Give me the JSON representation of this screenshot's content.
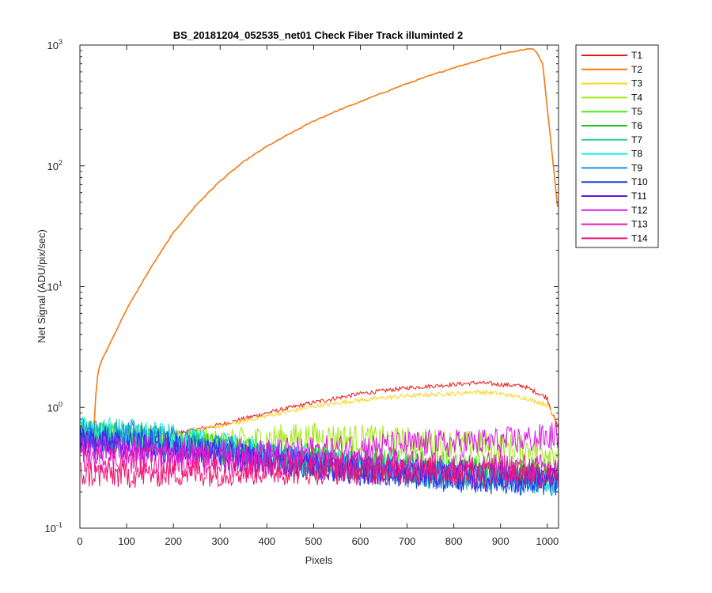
{
  "chart_data": {
    "type": "line",
    "title": "BS_20181204_052535_net01   Check Fiber     Track illuminted 2",
    "xlabel": "Pixels",
    "ylabel": "Net Signal (ADU/pix/sec)",
    "xlim": [
      0,
      1024
    ],
    "ylim": [
      0.1,
      1000
    ],
    "yscale": "log",
    "x_ticks": [
      "0",
      "100",
      "200",
      "300",
      "400",
      "500",
      "600",
      "700",
      "800",
      "900",
      "1000"
    ],
    "y_ticks": [
      {
        "value": 0.1,
        "base": "10",
        "exp": "-1"
      },
      {
        "value": 1,
        "base": "10",
        "exp": "0"
      },
      {
        "value": 10,
        "base": "10",
        "exp": "1"
      },
      {
        "value": 100,
        "base": "10",
        "exp": "2"
      },
      {
        "value": 1000,
        "base": "10",
        "exp": "3"
      }
    ],
    "grid": false,
    "legend_position": "outside-right",
    "series": [
      {
        "name": "T1",
        "color": "#e6191a",
        "x": [
          0,
          30,
          100,
          200,
          300,
          400,
          500,
          600,
          700,
          800,
          850,
          900,
          950,
          1000,
          1010,
          1024
        ],
        "y": [
          0.6,
          0.62,
          0.6,
          0.6,
          0.72,
          0.9,
          1.1,
          1.3,
          1.45,
          1.55,
          1.6,
          1.55,
          1.5,
          1.2,
          0.9,
          0.68
        ]
      },
      {
        "name": "T2",
        "color": "#f57a11",
        "x": [
          30,
          35,
          40,
          50,
          100,
          150,
          200,
          250,
          300,
          350,
          400,
          450,
          500,
          550,
          600,
          650,
          700,
          750,
          800,
          850,
          900,
          950,
          965,
          975,
          990,
          1000,
          1010,
          1024
        ],
        "y": [
          0.65,
          1.5,
          2.1,
          2.6,
          6.5,
          14,
          28,
          48,
          75,
          108,
          145,
          185,
          235,
          285,
          340,
          405,
          480,
          560,
          650,
          740,
          840,
          920,
          940,
          900,
          700,
          300,
          130,
          38
        ]
      },
      {
        "name": "T3",
        "color": "#ffd11a",
        "x": [
          0,
          30,
          100,
          200,
          300,
          400,
          500,
          600,
          700,
          800,
          850,
          900,
          950,
          1000,
          1010,
          1024
        ],
        "y": [
          0.6,
          0.6,
          0.6,
          0.58,
          0.7,
          0.85,
          1.02,
          1.15,
          1.25,
          1.3,
          1.35,
          1.3,
          1.2,
          1.05,
          0.9,
          0.66
        ]
      },
      {
        "name": "T4",
        "color": "#a3e61a",
        "x": [
          0,
          100,
          200,
          300,
          400,
          500,
          600,
          700,
          800,
          900,
          1000,
          1024
        ],
        "y": [
          0.55,
          0.55,
          0.52,
          0.5,
          0.55,
          0.57,
          0.55,
          0.52,
          0.5,
          0.47,
          0.44,
          0.43
        ]
      },
      {
        "name": "T5",
        "color": "#4ceb19",
        "x": [
          0,
          100,
          200,
          300,
          400,
          500,
          600,
          700,
          800,
          900,
          1000,
          1024
        ],
        "y": [
          0.6,
          0.58,
          0.52,
          0.47,
          0.42,
          0.38,
          0.36,
          0.34,
          0.32,
          0.3,
          0.29,
          0.28
        ]
      },
      {
        "name": "T6",
        "color": "#19c61f",
        "x": [
          0,
          100,
          200,
          300,
          400,
          500,
          600,
          700,
          800,
          900,
          1000,
          1024
        ],
        "y": [
          0.58,
          0.56,
          0.5,
          0.45,
          0.4,
          0.36,
          0.33,
          0.31,
          0.29,
          0.28,
          0.27,
          0.26
        ]
      },
      {
        "name": "T7",
        "color": "#33c9a0",
        "x": [
          0,
          100,
          200,
          300,
          400,
          500,
          600,
          700,
          800,
          900,
          1000,
          1024
        ],
        "y": [
          0.6,
          0.57,
          0.5,
          0.44,
          0.38,
          0.34,
          0.31,
          0.29,
          0.27,
          0.26,
          0.25,
          0.24
        ]
      },
      {
        "name": "T8",
        "color": "#1ae6e6",
        "x": [
          0,
          100,
          200,
          300,
          400,
          500,
          600,
          700,
          800,
          900,
          1000,
          1024
        ],
        "y": [
          0.65,
          0.62,
          0.55,
          0.48,
          0.41,
          0.36,
          0.33,
          0.3,
          0.28,
          0.27,
          0.26,
          0.25
        ]
      },
      {
        "name": "T9",
        "color": "#1a8ff0",
        "x": [
          0,
          100,
          200,
          300,
          400,
          500,
          600,
          700,
          800,
          900,
          1000,
          1024
        ],
        "y": [
          0.62,
          0.6,
          0.53,
          0.46,
          0.4,
          0.35,
          0.32,
          0.29,
          0.27,
          0.26,
          0.25,
          0.24
        ]
      },
      {
        "name": "T10",
        "color": "#1a40e6",
        "x": [
          0,
          100,
          200,
          300,
          400,
          500,
          600,
          700,
          800,
          900,
          1000,
          1024
        ],
        "y": [
          0.55,
          0.53,
          0.48,
          0.42,
          0.37,
          0.33,
          0.3,
          0.28,
          0.26,
          0.25,
          0.24,
          0.24
        ]
      },
      {
        "name": "T11",
        "color": "#5a1ae6",
        "x": [
          0,
          100,
          200,
          300,
          400,
          500,
          600,
          700,
          800,
          900,
          1000,
          1024
        ],
        "y": [
          0.5,
          0.48,
          0.44,
          0.4,
          0.36,
          0.33,
          0.31,
          0.29,
          0.28,
          0.27,
          0.26,
          0.26
        ]
      },
      {
        "name": "T12",
        "color": "#d91ae6",
        "x": [
          0,
          100,
          200,
          300,
          400,
          500,
          600,
          700,
          800,
          900,
          1000,
          1024
        ],
        "y": [
          0.45,
          0.45,
          0.43,
          0.42,
          0.42,
          0.44,
          0.46,
          0.49,
          0.5,
          0.52,
          0.56,
          0.6
        ]
      },
      {
        "name": "T13",
        "color": "#e61ab3",
        "x": [
          0,
          100,
          200,
          300,
          400,
          500,
          600,
          700,
          800,
          900,
          1000,
          1024
        ],
        "y": [
          0.38,
          0.37,
          0.36,
          0.35,
          0.34,
          0.34,
          0.33,
          0.33,
          0.32,
          0.32,
          0.31,
          0.31
        ]
      },
      {
        "name": "T14",
        "color": "#f0146e",
        "x": [
          0,
          100,
          200,
          300,
          400,
          500,
          600,
          700,
          800,
          900,
          1000,
          1024
        ],
        "y": [
          0.28,
          0.28,
          0.29,
          0.29,
          0.3,
          0.3,
          0.3,
          0.3,
          0.29,
          0.29,
          0.28,
          0.28
        ]
      }
    ]
  }
}
